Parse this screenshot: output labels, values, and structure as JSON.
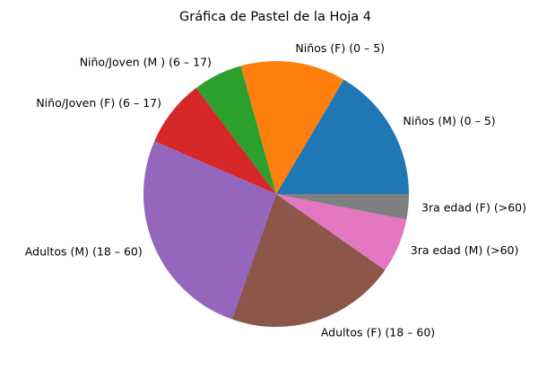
{
  "chart_data": {
    "type": "pie",
    "title": "Gráfica de Pastel de la Hoja 4",
    "start_angle_deg": 0,
    "direction": "counterclockwise",
    "slices": [
      {
        "label": "Niños (M) (0 – 5)",
        "value": 16.5,
        "color": "#1f77b4"
      },
      {
        "label": "Niños (F) (0 – 5)",
        "value": 12.8,
        "color": "#ff7f0e"
      },
      {
        "label": "Niño/Joven (M ) (6 – 17)",
        "value": 6.0,
        "color": "#2ca02c"
      },
      {
        "label": "Niño/Joven (F) (6 – 17)",
        "value": 8.2,
        "color": "#d62728"
      },
      {
        "label": "Adultos (M) (18 – 60)",
        "value": 26.1,
        "color": "#9467bd"
      },
      {
        "label": "Adultos (F) (18 – 60)",
        "value": 20.7,
        "color": "#8c564b"
      },
      {
        "label": "3ra edad (M) (>60)",
        "value": 6.6,
        "color": "#e377c2"
      },
      {
        "label": "3ra edad (F) (>60)",
        "value": 3.1,
        "color": "#7f7f7f"
      }
    ]
  }
}
